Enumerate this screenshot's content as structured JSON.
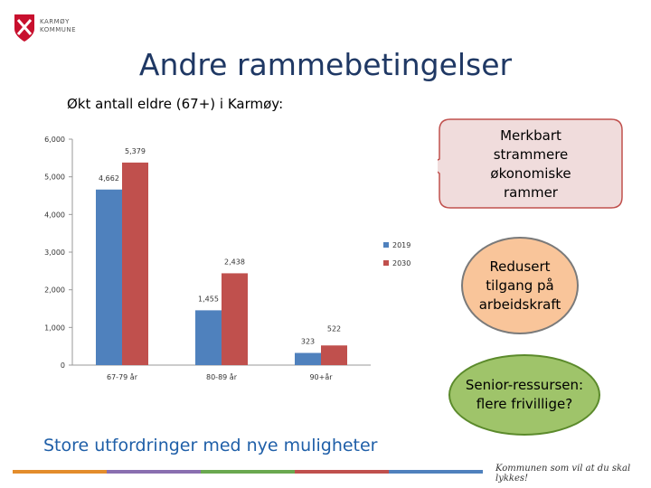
{
  "logo": {
    "line1": "KARMØY",
    "line2": "KOMMUNE"
  },
  "title": "Andre rammebetingelser",
  "subtitle": "Økt antall eldre (67+) i Karmøy:",
  "callouts": [
    {
      "text": "Merkbart strammere økonomiske rammer",
      "color": "#f0dcdc"
    },
    {
      "text": "Redusert tilgang på arbeidskraft",
      "color": "#f9c59a"
    },
    {
      "text": "Senior-ressursen: flere frivillige?",
      "color": "#9fc46a"
    }
  ],
  "bottom_text": "Store utfordringer med nye muligheter",
  "slogan": "Kommunen som vil at du skal lykkes!",
  "colors": {
    "series_2019": "#4f81bd",
    "series_2030": "#c0504d",
    "title": "#1f3864",
    "bottom_text": "#1f5fa8"
  },
  "chart_data": {
    "type": "bar",
    "categories": [
      "67-79 år",
      "80-89 år",
      "90+år"
    ],
    "series": [
      {
        "name": "2019",
        "values": [
          4662,
          1455,
          323
        ],
        "labels": [
          "4,662",
          "1,455",
          "323"
        ]
      },
      {
        "name": "2030",
        "values": [
          5379,
          2438,
          522
        ],
        "labels": [
          "5,379",
          "2,438",
          "522"
        ]
      }
    ],
    "ylim": [
      0,
      6000
    ],
    "yticks": [
      0,
      1000,
      2000,
      3000,
      4000,
      5000,
      6000
    ],
    "ytick_labels": [
      "0",
      "1,000",
      "2,000",
      "3,000",
      "4,000",
      "5,000",
      "6,000"
    ],
    "legend": "right",
    "grid": false
  }
}
